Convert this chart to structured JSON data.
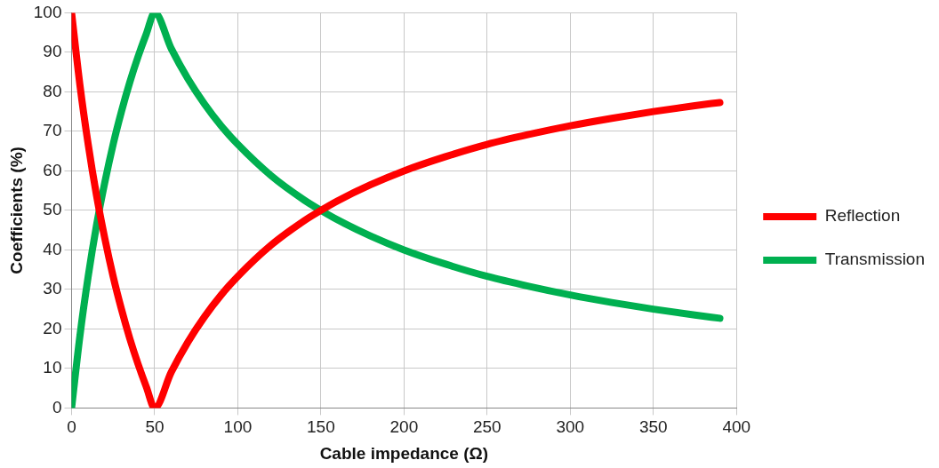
{
  "chart_data": {
    "type": "line",
    "xlabel": "Cable impedance (Ω)",
    "ylabel": "Coefficients (%)",
    "x": [
      0,
      5,
      10,
      15,
      20,
      25,
      30,
      35,
      40,
      45,
      50,
      60,
      70,
      80,
      90,
      100,
      120,
      140,
      150,
      160,
      180,
      200,
      225,
      250,
      275,
      300,
      325,
      350,
      375,
      390
    ],
    "series": [
      {
        "name": "Reflection",
        "color": "#ff0000",
        "values": [
          100,
          81.8,
          66.7,
          53.8,
          42.9,
          33.3,
          25,
          17.6,
          11.1,
          5.3,
          0,
          9.1,
          16.7,
          23.1,
          28.6,
          33.3,
          41.2,
          47.4,
          50,
          52.4,
          56.5,
          60,
          63.6,
          66.7,
          69.2,
          71.4,
          73.3,
          75,
          76.5,
          77.3
        ]
      },
      {
        "name": "Transmission",
        "color": "#00b050",
        "values": [
          0,
          18.2,
          33.3,
          46.2,
          57.1,
          66.7,
          75,
          82.4,
          88.9,
          94.7,
          100,
          90.9,
          83.3,
          76.9,
          71.4,
          66.7,
          58.8,
          52.6,
          50,
          47.6,
          43.5,
          40,
          36.4,
          33.3,
          30.8,
          28.6,
          26.7,
          25,
          23.5,
          22.7
        ]
      }
    ],
    "xlim": [
      0,
      400
    ],
    "xticks": [
      0,
      50,
      100,
      150,
      200,
      250,
      300,
      350,
      400
    ],
    "ylim": [
      0,
      100
    ],
    "yticks": [
      0,
      10,
      20,
      30,
      40,
      50,
      60,
      70,
      80,
      90,
      100
    ],
    "grid": true,
    "legend": "right",
    "marker": "none",
    "line_style": "solid"
  }
}
